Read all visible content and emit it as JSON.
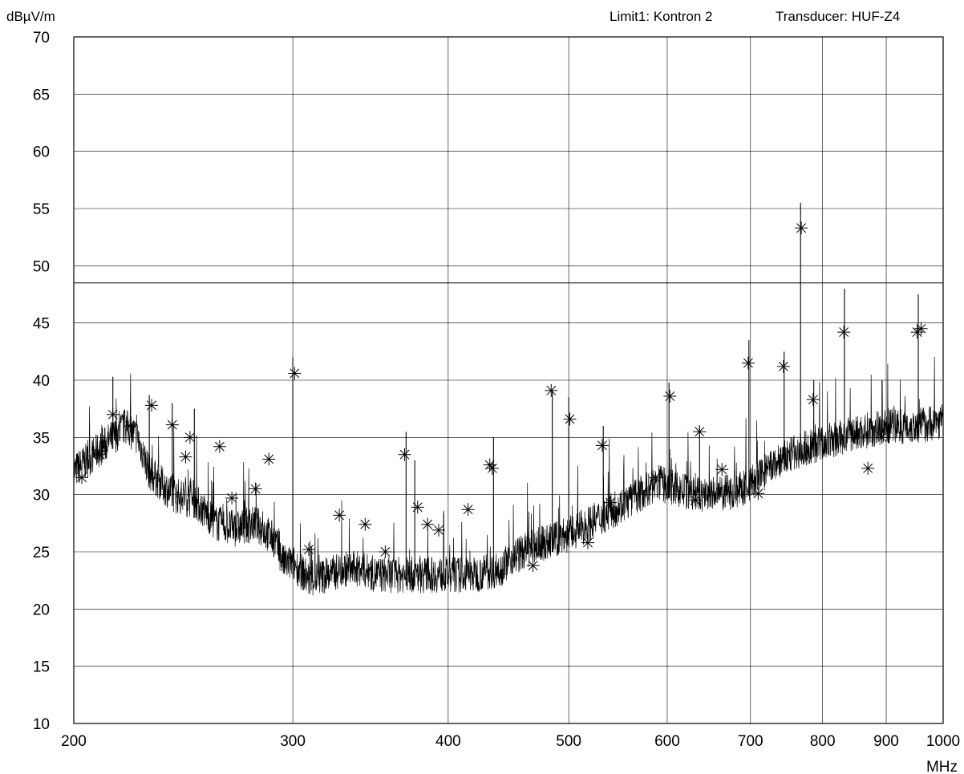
{
  "chart_data": {
    "type": "line",
    "ylabel": "dBµV/m",
    "xlabel": "MHz",
    "header": {
      "limit": "Limit1: Kontron 2",
      "transducer": "Transducer: HUF-Z4"
    },
    "x_scale": "log",
    "xlim": [
      200,
      1000
    ],
    "ylim": [
      10,
      70
    ],
    "x_ticks": [
      200,
      300,
      400,
      500,
      600,
      700,
      800,
      900,
      1000
    ],
    "x_tick_labels": [
      "200",
      "300",
      "400",
      "500",
      "600",
      "700",
      "800",
      "900",
      "1000"
    ],
    "y_ticks": [
      10,
      15,
      20,
      25,
      30,
      35,
      40,
      45,
      50,
      55,
      60,
      65,
      70
    ],
    "y_tick_labels": [
      "10",
      "15",
      "20",
      "25",
      "30",
      "35",
      "40",
      "45",
      "50",
      "55",
      "60",
      "65",
      "70"
    ],
    "grid": true,
    "colors": {
      "trace": "#000000",
      "grid": "#000000",
      "background": "#ffffff"
    },
    "limit_line": {
      "value": 48.5
    },
    "baseline": [
      [
        200,
        32
      ],
      [
        205,
        33
      ],
      [
        210,
        34
      ],
      [
        215,
        35
      ],
      [
        220,
        36
      ],
      [
        225,
        35
      ],
      [
        230,
        32
      ],
      [
        240,
        30
      ],
      [
        250,
        29.5
      ],
      [
        260,
        27.5
      ],
      [
        270,
        27
      ],
      [
        280,
        27.5
      ],
      [
        290,
        26
      ],
      [
        295,
        24
      ],
      [
        300,
        24
      ],
      [
        310,
        22.5
      ],
      [
        320,
        23
      ],
      [
        330,
        23.5
      ],
      [
        340,
        23.5
      ],
      [
        350,
        23
      ],
      [
        360,
        23
      ],
      [
        380,
        23
      ],
      [
        400,
        23
      ],
      [
        420,
        23
      ],
      [
        440,
        23.5
      ],
      [
        450,
        24.5
      ],
      [
        470,
        25.5
      ],
      [
        500,
        26.5
      ],
      [
        530,
        28
      ],
      [
        560,
        29.5
      ],
      [
        590,
        31
      ],
      [
        610,
        30.5
      ],
      [
        630,
        30
      ],
      [
        660,
        30
      ],
      [
        690,
        30.5
      ],
      [
        710,
        31.5
      ],
      [
        740,
        33
      ],
      [
        770,
        34
      ],
      [
        800,
        34.5
      ],
      [
        830,
        35
      ],
      [
        860,
        35.5
      ],
      [
        900,
        36
      ],
      [
        950,
        36
      ],
      [
        1000,
        36.5
      ]
    ],
    "spikes": [
      [
        215,
        40.3
      ],
      [
        230,
        38.7
      ],
      [
        240,
        38
      ],
      [
        250,
        37.5
      ],
      [
        300,
        42
      ],
      [
        370,
        35.5
      ],
      [
        376,
        33
      ],
      [
        435,
        35
      ],
      [
        485,
        39.2
      ],
      [
        500,
        38.5
      ],
      [
        533,
        36
      ],
      [
        602,
        39.8
      ],
      [
        637,
        36
      ],
      [
        698,
        43.5
      ],
      [
        745,
        42.5
      ],
      [
        768,
        55.5
      ],
      [
        787,
        40
      ],
      [
        833,
        48
      ],
      [
        893,
        40
      ],
      [
        955,
        47.5
      ]
    ],
    "markers": [
      [
        203,
        31.5
      ],
      [
        210,
        33.5
      ],
      [
        215,
        37
      ],
      [
        222,
        36
      ],
      [
        231,
        37.8
      ],
      [
        240,
        36.1
      ],
      [
        246,
        33.3
      ],
      [
        248,
        35
      ],
      [
        262,
        34.2
      ],
      [
        268,
        29.7
      ],
      [
        280,
        30.5
      ],
      [
        287,
        33.1
      ],
      [
        301,
        40.6
      ],
      [
        309,
        25.2
      ],
      [
        327,
        28.2
      ],
      [
        343,
        27.4
      ],
      [
        356,
        25
      ],
      [
        369,
        33.5
      ],
      [
        378,
        28.9
      ],
      [
        385,
        27.4
      ],
      [
        393,
        26.9
      ],
      [
        415,
        28.7
      ],
      [
        432,
        32.6
      ],
      [
        434,
        32.3
      ],
      [
        468,
        23.8
      ],
      [
        484,
        39.1
      ],
      [
        501,
        36.6
      ],
      [
        518,
        25.8
      ],
      [
        532,
        34.3
      ],
      [
        540,
        29.3
      ],
      [
        587,
        31.5
      ],
      [
        603,
        38.6
      ],
      [
        632,
        29.5
      ],
      [
        637,
        35.5
      ],
      [
        664,
        32.2
      ],
      [
        697,
        41.5
      ],
      [
        710,
        30.1
      ],
      [
        744,
        41.2
      ],
      [
        769,
        53.3
      ],
      [
        786,
        38.3
      ],
      [
        832,
        44.2
      ],
      [
        870,
        32.3
      ],
      [
        893,
        35
      ],
      [
        953,
        44.2
      ],
      [
        960,
        44.5
      ]
    ]
  }
}
